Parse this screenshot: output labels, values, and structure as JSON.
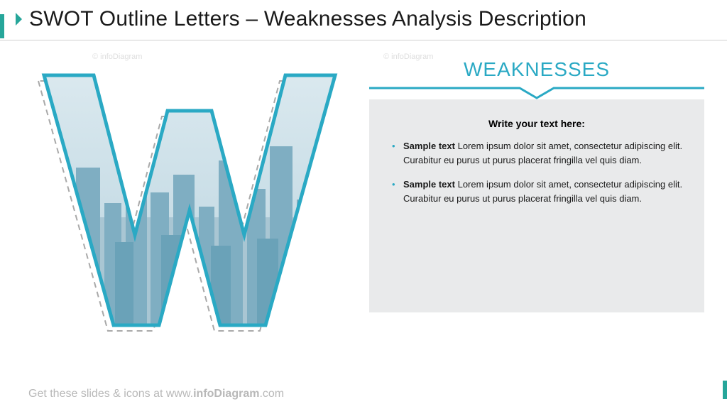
{
  "colors": {
    "accent": "#2aa9c4",
    "teal": "#26a69a",
    "panel_bg": "#e9eaeb",
    "title": "#1a1a1a",
    "footer": "#b8b8b8",
    "shadow_stroke": "#a9a9a9",
    "sky1": "#dbe9ef",
    "sky2": "#c8dde6",
    "city1": "#a9c6d3",
    "city2": "#7faec2",
    "city3": "#6aa2b8"
  },
  "title": "SWOT Outline Letters – Weaknesses Analysis Description",
  "watermark": "© infoDiagram",
  "letter": "W",
  "eyebrow": "WEAKNESSES",
  "panel": {
    "heading": "Write your text here:",
    "bullets": [
      {
        "lead": "Sample text",
        "body": " Lorem ipsum dolor sit amet, consectetur adipiscing elit. Curabitur eu purus ut purus placerat fringilla vel quis diam."
      },
      {
        "lead": "Sample text",
        "body": " Lorem ipsum dolor sit amet, consectetur adipiscing elit. Curabitur eu purus ut purus placerat fringilla vel quis diam."
      }
    ]
  },
  "footer": {
    "pre": "Get these slides & icons at www.",
    "bold": "infoDiagram",
    "post": ".com"
  },
  "style": {
    "letter_stroke_width": 5,
    "shadow_dash": "8 6",
    "chevron_stroke": 3
  }
}
